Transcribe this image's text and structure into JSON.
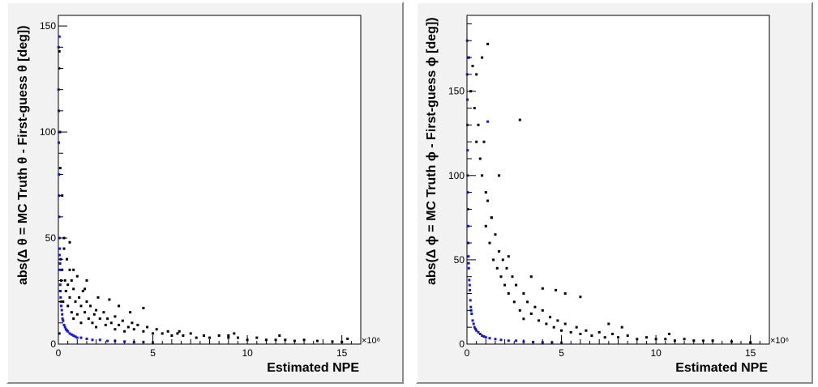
{
  "chart_data": [
    {
      "type": "scatter",
      "title": "",
      "xlabel": "Estimated NPE",
      "ylabel": "abs(Δ θ = MC Truth θ - First-guess θ [deg])",
      "x_multiplier": "×10⁶",
      "xlim": [
        0,
        16
      ],
      "ylim": [
        0,
        155
      ],
      "x_ticks": [
        0,
        5,
        10,
        15
      ],
      "y_ticks": [
        0,
        50,
        100,
        150
      ],
      "grid": false,
      "series": [
        {
          "color": "#000000",
          "points": [
            [
              0.05,
              5
            ],
            [
              0.1,
              25
            ],
            [
              0.12,
              40
            ],
            [
              0.15,
              30
            ],
            [
              0.2,
              35
            ],
            [
              0.25,
              20
            ],
            [
              0.3,
              45
            ],
            [
              0.35,
              30
            ],
            [
              0.4,
              25
            ],
            [
              0.45,
              40
            ],
            [
              0.5,
              28
            ],
            [
              0.5,
              18
            ],
            [
              0.6,
              35
            ],
            [
              0.6,
              22
            ],
            [
              0.7,
              30
            ],
            [
              0.7,
              15
            ],
            [
              0.8,
              26
            ],
            [
              0.8,
              12
            ],
            [
              0.9,
              20
            ],
            [
              1.0,
              32
            ],
            [
              1.0,
              14
            ],
            [
              1.1,
              22
            ],
            [
              1.2,
              18
            ],
            [
              1.2,
              10
            ],
            [
              1.3,
              25
            ],
            [
              1.4,
              15
            ],
            [
              1.5,
              20
            ],
            [
              1.6,
              12
            ],
            [
              1.7,
              18
            ],
            [
              1.8,
              10
            ],
            [
              1.9,
              14
            ],
            [
              2.0,
              16
            ],
            [
              2.0,
              8
            ],
            [
              2.2,
              12
            ],
            [
              2.4,
              15
            ],
            [
              2.5,
              9
            ],
            [
              2.6,
              12
            ],
            [
              2.8,
              10
            ],
            [
              3.0,
              13
            ],
            [
              3.0,
              7
            ],
            [
              3.2,
              9
            ],
            [
              3.4,
              11
            ],
            [
              3.5,
              6
            ],
            [
              3.7,
              8
            ],
            [
              3.9,
              10
            ],
            [
              4.0,
              7
            ],
            [
              4.2,
              9
            ],
            [
              4.5,
              6
            ],
            [
              4.7,
              8
            ],
            [
              5.0,
              5
            ],
            [
              5.2,
              7
            ],
            [
              5.5,
              5
            ],
            [
              5.8,
              6
            ],
            [
              6.0,
              4
            ],
            [
              6.3,
              5
            ],
            [
              6.6,
              4
            ],
            [
              7.0,
              5
            ],
            [
              7.3,
              3
            ],
            [
              7.7,
              4
            ],
            [
              8.0,
              3
            ],
            [
              8.5,
              4
            ],
            [
              9.0,
              3
            ],
            [
              9.5,
              3
            ],
            [
              10.0,
              2
            ],
            [
              10.5,
              3
            ],
            [
              11.0,
              2
            ],
            [
              11.5,
              2
            ],
            [
              12.0,
              2
            ],
            [
              12.5,
              1.5
            ],
            [
              13.0,
              2
            ],
            [
              13.7,
              1.5
            ],
            [
              14.5,
              1.2
            ],
            [
              15.0,
              1
            ],
            [
              0.08,
              100
            ],
            [
              0.05,
              138
            ],
            [
              0.1,
              83
            ],
            [
              0.2,
              70
            ],
            [
              0.3,
              50
            ],
            [
              0.6,
              48
            ],
            [
              0.8,
              35
            ],
            [
              1.5,
              30
            ],
            [
              4.5,
              17
            ],
            [
              3.8,
              15
            ],
            [
              2.7,
              21
            ],
            [
              3.2,
              18
            ],
            [
              2.1,
              22
            ],
            [
              1.4,
              26
            ],
            [
              6.4,
              6
            ],
            [
              9.3,
              5
            ],
            [
              9.0,
              4
            ],
            [
              11.7,
              4
            ],
            [
              15.3,
              2.5
            ]
          ]
        },
        {
          "color": "#1010ff",
          "points": [
            [
              0.01,
              140
            ],
            [
              0.01,
              120
            ],
            [
              0.02,
              110
            ],
            [
              0.02,
              95
            ],
            [
              0.03,
              80
            ],
            [
              0.03,
              70
            ],
            [
              0.04,
              60
            ],
            [
              0.05,
              50
            ],
            [
              0.06,
              42
            ],
            [
              0.08,
              35
            ],
            [
              0.1,
              28
            ],
            [
              0.12,
              22
            ],
            [
              0.15,
              18
            ],
            [
              0.2,
              14
            ],
            [
              0.25,
              11
            ],
            [
              0.3,
              9
            ],
            [
              0.4,
              7
            ],
            [
              0.5,
              6
            ],
            [
              0.6,
              5
            ],
            [
              0.8,
              4
            ],
            [
              1.0,
              3
            ],
            [
              1.2,
              3
            ],
            [
              1.5,
              2.5
            ],
            [
              1.8,
              2
            ],
            [
              2.2,
              2
            ],
            [
              2.6,
              1.5
            ],
            [
              3.0,
              1.5
            ],
            [
              3.5,
              1.2
            ],
            [
              4.0,
              1
            ],
            [
              4.5,
              1
            ],
            [
              5.0,
              0.8
            ],
            [
              0.05,
              145
            ],
            [
              0.04,
              130
            ],
            [
              0.03,
              100
            ],
            [
              0.07,
              45
            ],
            [
              0.09,
              38
            ],
            [
              0.11,
              25
            ],
            [
              0.13,
              20
            ],
            [
              0.18,
              16
            ],
            [
              0.22,
              12
            ],
            [
              0.35,
              8
            ],
            [
              0.45,
              6.5
            ],
            [
              0.7,
              4.5
            ],
            [
              0.9,
              3.5
            ]
          ]
        }
      ]
    },
    {
      "type": "scatter",
      "title": "",
      "xlabel": "Estimated NPE",
      "ylabel": "abs(Δ ϕ = MC Truth ϕ - First-guess ϕ [deg])",
      "x_multiplier": "×10⁶",
      "xlim": [
        0,
        16
      ],
      "ylim": [
        0,
        195
      ],
      "x_ticks": [
        0,
        5,
        10,
        15
      ],
      "y_ticks": [
        0,
        50,
        100,
        150
      ],
      "grid": false,
      "series": [
        {
          "color": "#000000",
          "points": [
            [
              0.1,
              170
            ],
            [
              0.2,
              150
            ],
            [
              0.3,
              165
            ],
            [
              0.4,
              140
            ],
            [
              0.5,
              160
            ],
            [
              0.5,
              120
            ],
            [
              0.6,
              130
            ],
            [
              0.7,
              110
            ],
            [
              0.8,
              100
            ],
            [
              0.9,
              120
            ],
            [
              1.0,
              90
            ],
            [
              1.0,
              70
            ],
            [
              1.1,
              85
            ],
            [
              1.2,
              60
            ],
            [
              1.3,
              75
            ],
            [
              1.4,
              50
            ],
            [
              1.5,
              65
            ],
            [
              1.6,
              45
            ],
            [
              1.7,
              55
            ],
            [
              1.8,
              40
            ],
            [
              1.9,
              50
            ],
            [
              2.0,
              35
            ],
            [
              2.1,
              45
            ],
            [
              2.2,
              30
            ],
            [
              2.4,
              40
            ],
            [
              2.5,
              25
            ],
            [
              2.6,
              35
            ],
            [
              2.8,
              20
            ],
            [
              3.0,
              30
            ],
            [
              3.0,
              15
            ],
            [
              3.2,
              25
            ],
            [
              3.4,
              18
            ],
            [
              3.6,
              22
            ],
            [
              3.8,
              14
            ],
            [
              4.0,
              20
            ],
            [
              4.2,
              12
            ],
            [
              4.4,
              16
            ],
            [
              4.6,
              10
            ],
            [
              4.8,
              14
            ],
            [
              5.0,
              8
            ],
            [
              5.2,
              12
            ],
            [
              5.5,
              7
            ],
            [
              5.8,
              10
            ],
            [
              6.0,
              6
            ],
            [
              6.3,
              8
            ],
            [
              6.6,
              5
            ],
            [
              7.0,
              7
            ],
            [
              7.3,
              4
            ],
            [
              7.7,
              6
            ],
            [
              8.0,
              4
            ],
            [
              8.5,
              5
            ],
            [
              9.0,
              3
            ],
            [
              9.5,
              4
            ],
            [
              10.0,
              3
            ],
            [
              10.5,
              3
            ],
            [
              11.0,
              2
            ],
            [
              11.5,
              3
            ],
            [
              12.0,
              2
            ],
            [
              12.5,
              2
            ],
            [
              13.0,
              2
            ],
            [
              14.0,
              1.5
            ],
            [
              15.0,
              1
            ],
            [
              1.1,
              178
            ],
            [
              2.8,
              133
            ],
            [
              0.8,
              170
            ],
            [
              1.3,
              75
            ],
            [
              1.7,
              100
            ],
            [
              2.2,
              52
            ],
            [
              3.4,
              40
            ],
            [
              4.0,
              33
            ],
            [
              5.2,
              30
            ],
            [
              6.0,
              28
            ],
            [
              4.7,
              32
            ],
            [
              7.5,
              12
            ],
            [
              8.2,
              10
            ],
            [
              10.7,
              6
            ]
          ]
        },
        {
          "color": "#1010ff",
          "points": [
            [
              0.01,
              180
            ],
            [
              0.01,
              160
            ],
            [
              0.02,
              145
            ],
            [
              0.02,
              130
            ],
            [
              0.03,
              115
            ],
            [
              0.03,
              100
            ],
            [
              0.04,
              90
            ],
            [
              0.05,
              80
            ],
            [
              0.06,
              70
            ],
            [
              0.07,
              60
            ],
            [
              0.08,
              52
            ],
            [
              0.1,
              45
            ],
            [
              0.12,
              38
            ],
            [
              0.15,
              32
            ],
            [
              0.18,
              26
            ],
            [
              0.2,
              22
            ],
            [
              0.25,
              18
            ],
            [
              0.3,
              14
            ],
            [
              0.35,
              12
            ],
            [
              0.4,
              10
            ],
            [
              0.5,
              8
            ],
            [
              0.6,
              7
            ],
            [
              0.8,
              5
            ],
            [
              1.0,
              4
            ],
            [
              1.2,
              3.5
            ],
            [
              1.5,
              3
            ],
            [
              1.8,
              2.5
            ],
            [
              2.2,
              2
            ],
            [
              2.6,
              2
            ],
            [
              3.0,
              1.5
            ],
            [
              3.5,
              1.2
            ],
            [
              4.0,
              1
            ],
            [
              4.5,
              1
            ],
            [
              5.0,
              0.8
            ],
            [
              1.1,
              132
            ],
            [
              0.04,
              170
            ],
            [
              0.09,
              48
            ],
            [
              0.14,
              35
            ],
            [
              0.22,
              20
            ],
            [
              0.45,
              9
            ],
            [
              0.7,
              6
            ],
            [
              0.9,
              4.5
            ]
          ]
        }
      ]
    }
  ]
}
